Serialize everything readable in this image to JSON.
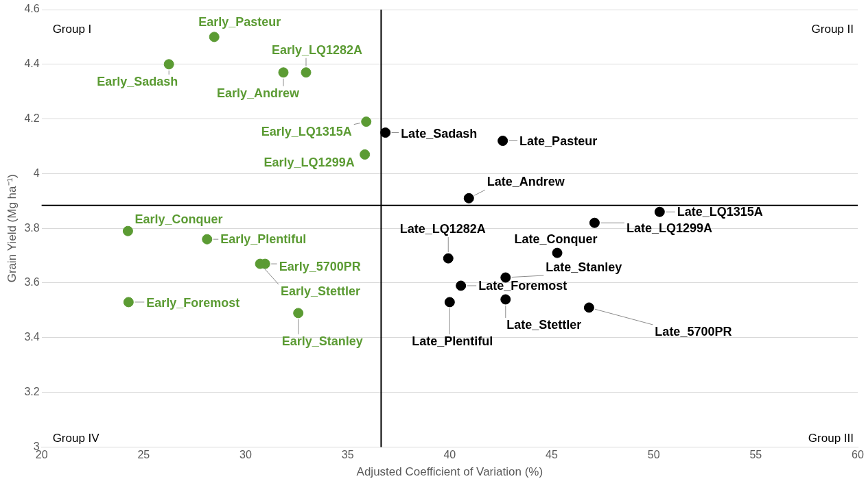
{
  "chart_data": {
    "type": "scatter",
    "xlabel": "Adjusted Coefficient of Variation (%)",
    "ylabel": "Grain Yield (Mg ha⁻¹)",
    "xlim": [
      20,
      60
    ],
    "xticks": [
      20,
      25,
      30,
      35,
      40,
      45,
      50,
      55,
      60
    ],
    "ylim": [
      3,
      4.6
    ],
    "yticks": [
      3,
      3.2,
      3.4,
      3.6,
      3.8,
      4,
      4.2,
      4.4,
      4.6
    ],
    "grid": "y",
    "legend": false,
    "marker": "circle",
    "series": [
      {
        "color": "#5b9b33",
        "x": [
          28.46,
          26.24,
          32.96,
          31.85,
          35.91,
          35.84,
          24.23,
          28.11,
          30.95,
          30.71,
          24.26,
          32.58
        ],
        "values": [
          4.5,
          4.4,
          4.37,
          4.37,
          4.19,
          4.07,
          3.79,
          3.76,
          3.67,
          3.67,
          3.53,
          3.49
        ]
      },
      {
        "color": "#000000",
        "x": [
          36.85,
          42.6,
          40.94,
          50.29,
          47.1,
          45.27,
          39.93,
          42.74,
          40.55,
          42.74,
          40,
          46.83
        ],
        "values": [
          4.15,
          4.12,
          3.91,
          3.86,
          3.82,
          3.71,
          3.69,
          3.62,
          3.59,
          3.54,
          3.53,
          3.51
        ]
      }
    ],
    "ref_lines": [
      {
        "axis": "x",
        "value": 36.64,
        "color": "#000000"
      },
      {
        "axis": "y",
        "value": 3.884,
        "color": "#000000"
      }
    ],
    "annotations": [
      {
        "text": "Early_Pasteur",
        "x": 28.46,
        "y": 4.5
      },
      {
        "text": "Early_Sadash",
        "x": 26.24,
        "y": 4.4
      },
      {
        "text": "Early_LQ1282A",
        "x": 32.96,
        "y": 4.37
      },
      {
        "text": "Early_Andrew",
        "x": 31.85,
        "y": 4.37
      },
      {
        "text": "Early_LQ1315A",
        "x": 35.91,
        "y": 4.19
      },
      {
        "text": "Early_LQ1299A",
        "x": 35.84,
        "y": 4.07
      },
      {
        "text": "Early_Conquer",
        "x": 24.23,
        "y": 3.79
      },
      {
        "text": "Early_Plentiful",
        "x": 28.11,
        "y": 3.76
      },
      {
        "text": "Early_5700PR",
        "x": 30.95,
        "y": 3.67
      },
      {
        "text": "Early_Stettler",
        "x": 30.71,
        "y": 3.67
      },
      {
        "text": "Early_Foremost",
        "x": 24.26,
        "y": 3.53
      },
      {
        "text": "Early_Stanley",
        "x": 32.58,
        "y": 3.49
      },
      {
        "text": "Late_Sadash",
        "x": 36.85,
        "y": 4.15
      },
      {
        "text": "Late_Pasteur",
        "x": 42.6,
        "y": 4.12
      },
      {
        "text": "Late_Andrew",
        "x": 40.94,
        "y": 3.91
      },
      {
        "text": "Late_LQ1315A",
        "x": 50.29,
        "y": 3.86
      },
      {
        "text": "Late_LQ1299A",
        "x": 47.1,
        "y": 3.82
      },
      {
        "text": "Late_Conquer",
        "x": 45.27,
        "y": 3.71
      },
      {
        "text": "Late_LQ1282A",
        "x": 39.93,
        "y": 3.69
      },
      {
        "text": "Late_Stanley",
        "x": 42.74,
        "y": 3.62
      },
      {
        "text": "Late_Foremost",
        "x": 40.55,
        "y": 3.59
      },
      {
        "text": "Late_Stettler",
        "x": 42.74,
        "y": 3.54
      },
      {
        "text": "Late_Plentiful",
        "x": 40,
        "y": 3.53
      },
      {
        "text": "Late_5700PR",
        "x": 46.83,
        "y": 3.51
      },
      "Group I",
      "Group II",
      "Group IV",
      "Group III"
    ]
  }
}
